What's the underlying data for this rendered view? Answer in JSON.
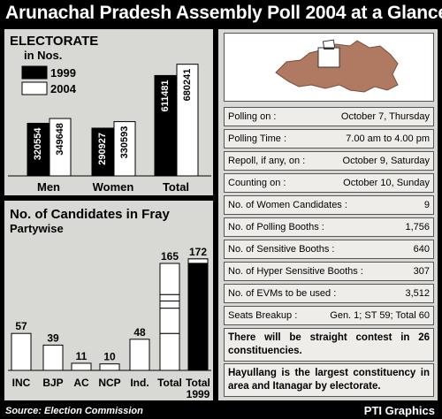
{
  "title": "Arunachal Pradesh Assembly Poll 2004 at a Glance",
  "source": "Source: Election Commission",
  "credit": "PTI Graphics",
  "chart_data": [
    {
      "type": "bar",
      "title": "ELECTORATE",
      "subtitle": "in Nos.",
      "legend_position": "top-left",
      "categories": [
        "Men",
        "Women",
        "Total"
      ],
      "series": [
        {
          "name": "1999",
          "color": "#000000",
          "values": [
            320554,
            290927,
            611481
          ]
        },
        {
          "name": "2004",
          "color": "#ffffff",
          "values": [
            349648,
            330593,
            680241
          ]
        }
      ],
      "ylim": [
        0,
        700000
      ]
    },
    {
      "type": "bar",
      "title": "No. of Candidates in Fray",
      "subtitle": "Partywise",
      "categories": [
        "INC",
        "BJP",
        "AC",
        "NCP",
        "Ind.",
        "Total",
        "Total 1999"
      ],
      "values": [
        57,
        39,
        11,
        10,
        48,
        165,
        172
      ],
      "total_breakdown": [
        57,
        39,
        11,
        10,
        48
      ],
      "ylim": [
        0,
        180
      ]
    }
  ],
  "info": [
    {
      "label": "Polling on :",
      "value": "October 7, Thursday"
    },
    {
      "label": "Polling Time :",
      "value": "7.00 am to 4.00 pm"
    },
    {
      "label": "Repoll, if any, on :",
      "value": "October 9, Saturday"
    },
    {
      "label": "Counting on :",
      "value": "October 10, Sunday"
    },
    {
      "label": "No. of Women Candidates :",
      "value": "9"
    },
    {
      "label": "No. of Polling Booths :",
      "value": "1,756"
    },
    {
      "label": "No. of Sensitive Booths :",
      "value": "640"
    },
    {
      "label": "No. of Hyper Sensitive Booths :",
      "value": "307"
    },
    {
      "label": "No. of EVMs to be used :",
      "value": "3,512"
    },
    {
      "label": "Seats Breakup :",
      "value": "Gen. 1; ST 59; Total 60"
    }
  ],
  "notes": [
    "There will be straight contest in 26 constituencies.",
    "Hayullang is the largest constituency in area and Itanagar by electorate."
  ]
}
